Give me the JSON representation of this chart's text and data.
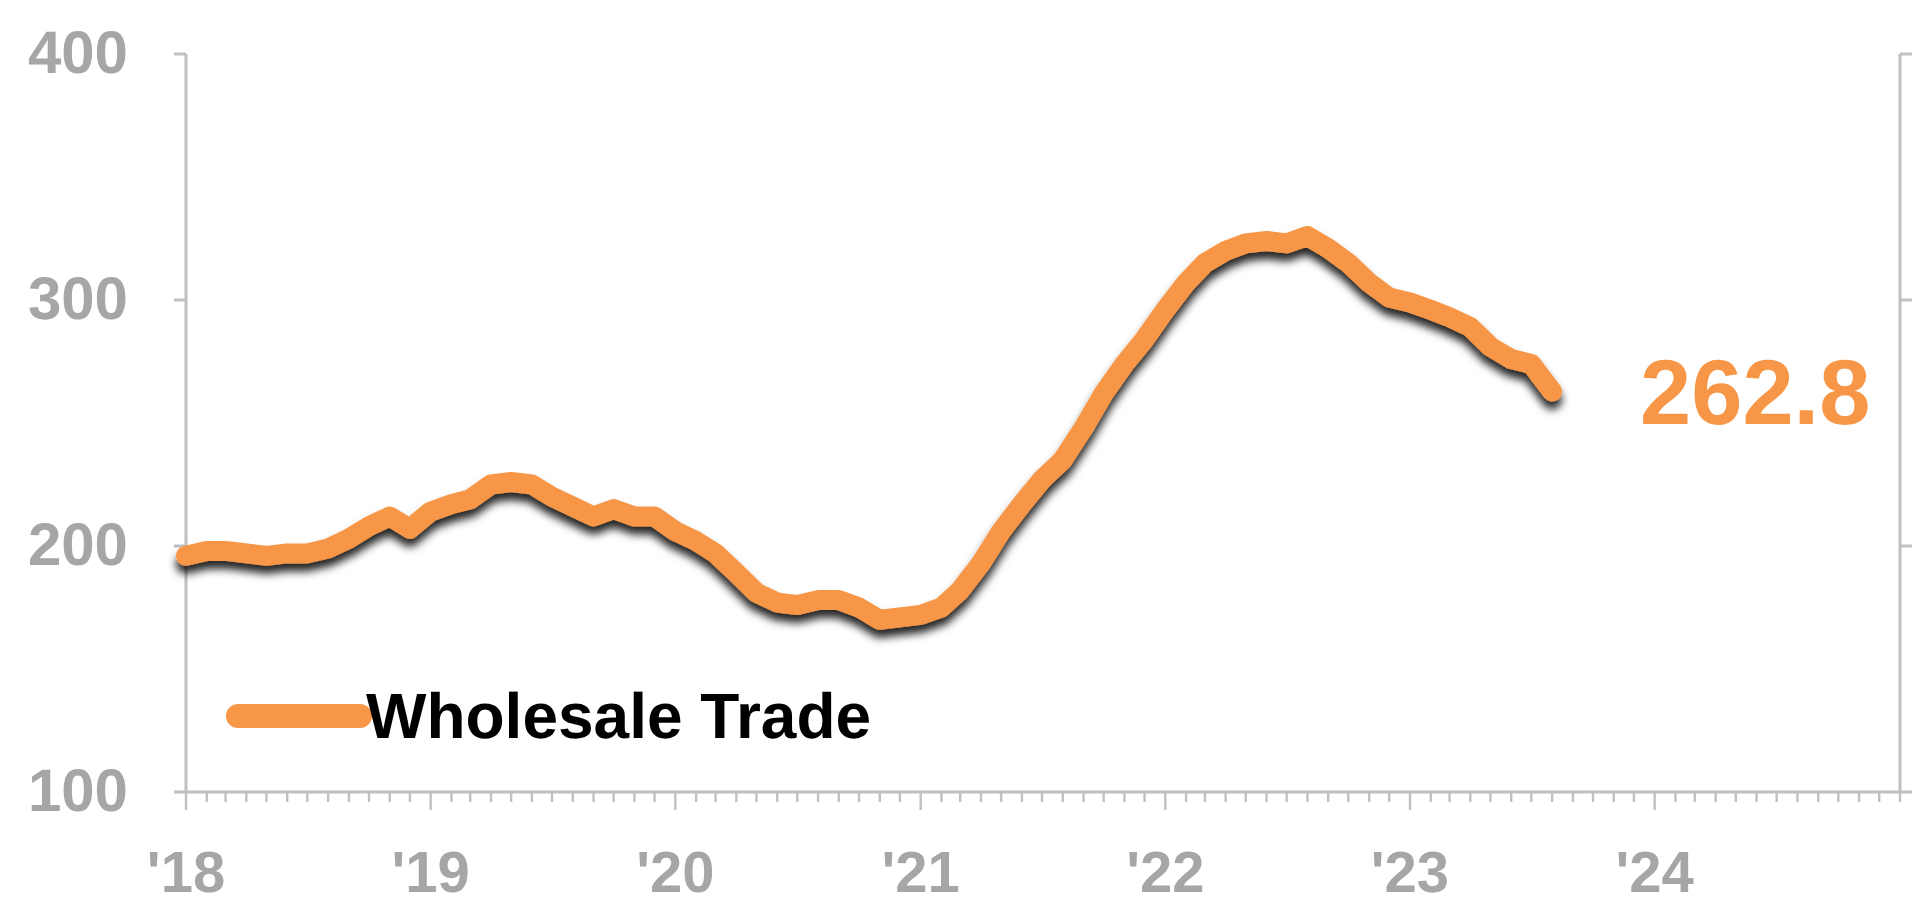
{
  "chart_data": {
    "type": "line",
    "x": [
      "2018-01",
      "2018-02",
      "2018-03",
      "2018-04",
      "2018-05",
      "2018-06",
      "2018-07",
      "2018-08",
      "2018-09",
      "2018-10",
      "2018-11",
      "2018-12",
      "2019-01",
      "2019-02",
      "2019-03",
      "2019-04",
      "2019-05",
      "2019-06",
      "2019-07",
      "2019-08",
      "2019-09",
      "2019-10",
      "2019-11",
      "2019-12",
      "2020-01",
      "2020-02",
      "2020-03",
      "2020-04",
      "2020-05",
      "2020-06",
      "2020-07",
      "2020-08",
      "2020-09",
      "2020-10",
      "2020-11",
      "2020-12",
      "2021-01",
      "2021-02",
      "2021-03",
      "2021-04",
      "2021-05",
      "2021-06",
      "2021-07",
      "2021-08",
      "2021-09",
      "2021-10",
      "2021-11",
      "2021-12",
      "2022-01",
      "2022-02",
      "2022-03",
      "2022-04",
      "2022-05",
      "2022-06",
      "2022-07",
      "2022-08",
      "2022-09",
      "2022-10",
      "2022-11",
      "2022-12",
      "2023-01",
      "2023-02",
      "2023-03",
      "2023-04",
      "2023-05",
      "2023-06",
      "2023-07",
      "2023-08"
    ],
    "series": [
      {
        "name": "Wholesale Trade",
        "color": "#f79646",
        "values": [
          196,
          198,
          198,
          197,
          196,
          197,
          197,
          199,
          203,
          208,
          212,
          207,
          214,
          217,
          219,
          225,
          226,
          225,
          220,
          216,
          212,
          215,
          212,
          212,
          206,
          202,
          197,
          189,
          181,
          177,
          176,
          178,
          178,
          175,
          170,
          171,
          172,
          175,
          182,
          193,
          206,
          217,
          227,
          235,
          248,
          262,
          274,
          284,
          296,
          307,
          315,
          320,
          323,
          324,
          323,
          326,
          321,
          315,
          307,
          301,
          299,
          296,
          293,
          289,
          281,
          276,
          274,
          262.8
        ]
      }
    ],
    "xlim": [
      "2018-01",
      "2025-01"
    ],
    "xticks": [
      {
        "value": "2018-01",
        "label": "'18"
      },
      {
        "value": "2018-02",
        "label": null
      },
      {
        "value": "2018-03",
        "label": null
      },
      {
        "value": "2018-04",
        "label": null
      },
      {
        "value": "2018-05",
        "label": null
      },
      {
        "value": "2018-06",
        "label": null
      },
      {
        "value": "2018-07",
        "label": null
      },
      {
        "value": "2018-08",
        "label": null
      },
      {
        "value": "2018-09",
        "label": null
      },
      {
        "value": "2018-10",
        "label": null
      },
      {
        "value": "2018-11",
        "label": null
      },
      {
        "value": "2018-12",
        "label": null
      },
      {
        "value": "2019-01",
        "label": "'19"
      },
      {
        "value": "2019-02",
        "label": null
      },
      {
        "value": "2019-03",
        "label": null
      },
      {
        "value": "2019-04",
        "label": null
      },
      {
        "value": "2019-05",
        "label": null
      },
      {
        "value": "2019-06",
        "label": null
      },
      {
        "value": "2019-07",
        "label": null
      },
      {
        "value": "2019-08",
        "label": null
      },
      {
        "value": "2019-09",
        "label": null
      },
      {
        "value": "2019-10",
        "label": null
      },
      {
        "value": "2019-11",
        "label": null
      },
      {
        "value": "2019-12",
        "label": null
      },
      {
        "value": "2020-01",
        "label": "'20"
      },
      {
        "value": "2020-02",
        "label": null
      },
      {
        "value": "2020-03",
        "label": null
      },
      {
        "value": "2020-04",
        "label": null
      },
      {
        "value": "2020-05",
        "label": null
      },
      {
        "value": "2020-06",
        "label": null
      },
      {
        "value": "2020-07",
        "label": null
      },
      {
        "value": "2020-08",
        "label": null
      },
      {
        "value": "2020-09",
        "label": null
      },
      {
        "value": "2020-10",
        "label": null
      },
      {
        "value": "2020-11",
        "label": null
      },
      {
        "value": "2020-12",
        "label": null
      },
      {
        "value": "2021-01",
        "label": "'21"
      },
      {
        "value": "2021-02",
        "label": null
      },
      {
        "value": "2021-03",
        "label": null
      },
      {
        "value": "2021-04",
        "label": null
      },
      {
        "value": "2021-05",
        "label": null
      },
      {
        "value": "2021-06",
        "label": null
      },
      {
        "value": "2021-07",
        "label": null
      },
      {
        "value": "2021-08",
        "label": null
      },
      {
        "value": "2021-09",
        "label": null
      },
      {
        "value": "2021-10",
        "label": null
      },
      {
        "value": "2021-11",
        "label": null
      },
      {
        "value": "2021-12",
        "label": null
      },
      {
        "value": "2022-01",
        "label": "'22"
      },
      {
        "value": "2022-02",
        "label": null
      },
      {
        "value": "2022-03",
        "label": null
      },
      {
        "value": "2022-04",
        "label": null
      },
      {
        "value": "2022-05",
        "label": null
      },
      {
        "value": "2022-06",
        "label": null
      },
      {
        "value": "2022-07",
        "label": null
      },
      {
        "value": "2022-08",
        "label": null
      },
      {
        "value": "2022-09",
        "label": null
      },
      {
        "value": "2022-10",
        "label": null
      },
      {
        "value": "2022-11",
        "label": null
      },
      {
        "value": "2022-12",
        "label": null
      },
      {
        "value": "2023-01",
        "label": "'23"
      },
      {
        "value": "2023-02",
        "label": null
      },
      {
        "value": "2023-03",
        "label": null
      },
      {
        "value": "2023-04",
        "label": null
      },
      {
        "value": "2023-05",
        "label": null
      },
      {
        "value": "2023-06",
        "label": null
      },
      {
        "value": "2023-07",
        "label": null
      },
      {
        "value": "2023-08",
        "label": null
      },
      {
        "value": "2023-09",
        "label": null
      },
      {
        "value": "2023-10",
        "label": null
      },
      {
        "value": "2023-11",
        "label": null
      },
      {
        "value": "2023-12",
        "label": null
      },
      {
        "value": "2024-01",
        "label": "'24"
      },
      {
        "value": "2024-02",
        "label": null
      },
      {
        "value": "2024-03",
        "label": null
      },
      {
        "value": "2024-04",
        "label": null
      },
      {
        "value": "2024-05",
        "label": null
      },
      {
        "value": "2024-06",
        "label": null
      },
      {
        "value": "2024-07",
        "label": null
      },
      {
        "value": "2024-08",
        "label": null
      },
      {
        "value": "2024-09",
        "label": null
      },
      {
        "value": "2024-10",
        "label": null
      },
      {
        "value": "2024-11",
        "label": null
      },
      {
        "value": "2024-12",
        "label": null
      },
      {
        "value": "2025-01",
        "label": null
      }
    ],
    "ylim": [
      100,
      400
    ],
    "yticks": [
      100,
      200,
      300,
      400
    ],
    "legend": "bottom left",
    "annotations": [
      {
        "text": "262.8",
        "x": "2023-08",
        "y": 262.8
      }
    ]
  }
}
